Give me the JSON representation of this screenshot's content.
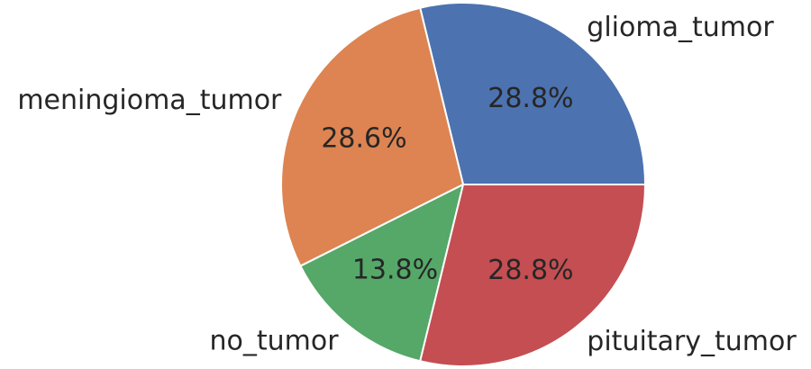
{
  "chart_data": {
    "type": "pie",
    "start_angle_deg": 0,
    "direction": "counterclockwise",
    "slices": [
      {
        "label": "glioma_tumor",
        "value": 28.8,
        "pct_label": "28.8%",
        "color": "#4c72b0"
      },
      {
        "label": "meningioma_tumor",
        "value": 28.6,
        "pct_label": "28.6%",
        "color": "#dd8452"
      },
      {
        "label": "no_tumor",
        "value": 13.8,
        "pct_label": "13.8%",
        "color": "#55a868"
      },
      {
        "label": "pituitary_tumor",
        "value": 28.8,
        "pct_label": "28.8%",
        "color": "#c44e52"
      }
    ]
  }
}
